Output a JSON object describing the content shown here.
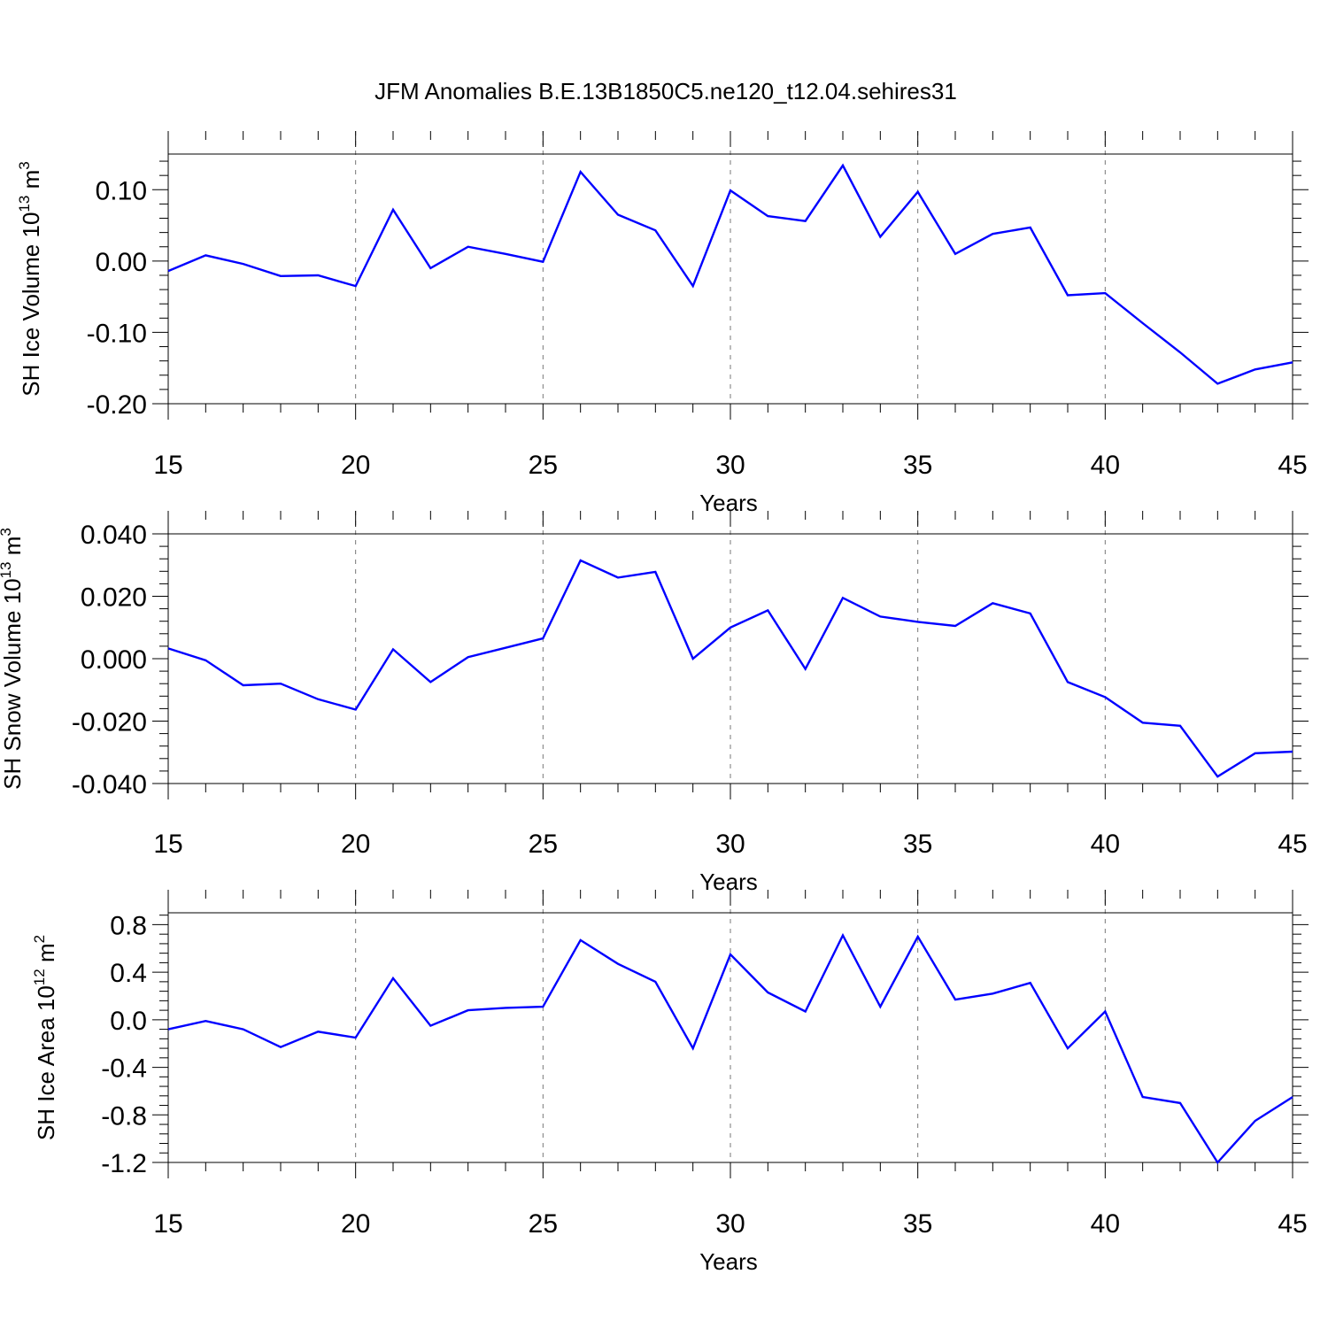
{
  "title": "JFM Anomalies B.E.13B1850C5.ne120_t12.04.sehires31",
  "colors": {
    "line": "#0000ff",
    "axis": "#000000",
    "grid": "#777777"
  },
  "chart_data": [
    {
      "type": "line",
      "ylabel": {
        "text": "SH Ice Volume 10",
        "exp": "13",
        "unit": " m",
        "unit_exp": "3"
      },
      "xlabel": "Years",
      "xlim": [
        15,
        45
      ],
      "ylim": [
        -0.2,
        0.15
      ],
      "x_ticks": [
        "15",
        "20",
        "25",
        "30",
        "35",
        "40",
        "45"
      ],
      "y_ticks": [
        {
          "v": -0.2,
          "label": "-0.20"
        },
        {
          "v": -0.1,
          "label": "-0.10"
        },
        {
          "v": 0.0,
          "label": "0.00"
        },
        {
          "v": 0.1,
          "label": "0.10"
        }
      ],
      "grid_x": [
        20,
        25,
        30,
        35,
        40
      ],
      "x": [
        15,
        16,
        17,
        18,
        19,
        20,
        21,
        22,
        23,
        24,
        25,
        26,
        27,
        28,
        29,
        30,
        31,
        32,
        33,
        34,
        35,
        36,
        37,
        38,
        39,
        40,
        41,
        42,
        43,
        44,
        45
      ],
      "series": [
        {
          "values": [
            -0.014,
            0.008,
            -0.004,
            -0.021,
            -0.02,
            -0.035,
            0.072,
            -0.01,
            0.02,
            0.01,
            -0.001,
            0.125,
            0.065,
            0.043,
            -0.035,
            0.099,
            0.063,
            0.056,
            0.134,
            0.034,
            0.097,
            0.01,
            0.038,
            0.047,
            -0.048,
            -0.045,
            -0.087,
            -0.128,
            -0.172,
            -0.152,
            -0.142
          ]
        }
      ]
    },
    {
      "type": "line",
      "ylabel": {
        "text": "SH Snow Volume 10",
        "exp": "13",
        "unit": " m",
        "unit_exp": "3"
      },
      "xlabel": "Years",
      "xlim": [
        15,
        45
      ],
      "ylim": [
        -0.04,
        0.04
      ],
      "x_ticks": [
        "15",
        "20",
        "25",
        "30",
        "35",
        "40",
        "45"
      ],
      "y_ticks": [
        {
          "v": -0.04,
          "label": "-0.040"
        },
        {
          "v": -0.02,
          "label": "-0.020"
        },
        {
          "v": 0.0,
          "label": "0.000"
        },
        {
          "v": 0.02,
          "label": "0.020"
        },
        {
          "v": 0.04,
          "label": "0.040"
        }
      ],
      "grid_x": [
        20,
        25,
        30,
        35,
        40
      ],
      "x": [
        15,
        16,
        17,
        18,
        19,
        20,
        21,
        22,
        23,
        24,
        25,
        26,
        27,
        28,
        29,
        30,
        31,
        32,
        33,
        34,
        35,
        36,
        37,
        38,
        39,
        40,
        41,
        42,
        43,
        44,
        45
      ],
      "series": [
        {
          "values": [
            0.0033,
            -0.0005,
            -0.0085,
            -0.008,
            -0.013,
            -0.0163,
            0.003,
            -0.0075,
            0.0005,
            0.0035,
            0.0065,
            0.0315,
            0.026,
            0.0278,
            0.0,
            0.01,
            0.0155,
            -0.0033,
            0.0195,
            0.0135,
            0.0118,
            0.0105,
            0.0178,
            0.0145,
            -0.0075,
            -0.0123,
            -0.0205,
            -0.0215,
            -0.0378,
            -0.0303,
            -0.0298
          ]
        }
      ]
    },
    {
      "type": "line",
      "ylabel": {
        "text": "SH Ice Area 10",
        "exp": "12",
        "unit": " m",
        "unit_exp": "2"
      },
      "xlabel": "Years",
      "xlim": [
        15,
        45
      ],
      "ylim": [
        -1.2,
        0.9
      ],
      "x_ticks": [
        "15",
        "20",
        "25",
        "30",
        "35",
        "40",
        "45"
      ],
      "y_ticks": [
        {
          "v": -1.2,
          "label": "-1.2"
        },
        {
          "v": -0.8,
          "label": "-0.8"
        },
        {
          "v": -0.4,
          "label": "-0.4"
        },
        {
          "v": 0.0,
          "label": "0.0"
        },
        {
          "v": 0.4,
          "label": "0.4"
        },
        {
          "v": 0.8,
          "label": "0.8"
        }
      ],
      "grid_x": [
        20,
        25,
        30,
        35,
        40
      ],
      "x": [
        15,
        16,
        17,
        18,
        19,
        20,
        21,
        22,
        23,
        24,
        25,
        26,
        27,
        28,
        29,
        30,
        31,
        32,
        33,
        34,
        35,
        36,
        37,
        38,
        39,
        40,
        41,
        42,
        43,
        44,
        45
      ],
      "series": [
        {
          "values": [
            -0.08,
            -0.01,
            -0.08,
            -0.23,
            -0.1,
            -0.15,
            0.35,
            -0.05,
            0.08,
            0.1,
            0.11,
            0.67,
            0.47,
            0.32,
            -0.24,
            0.55,
            0.23,
            0.07,
            0.71,
            0.11,
            0.7,
            0.17,
            0.22,
            0.31,
            -0.24,
            0.07,
            -0.65,
            -0.7,
            -1.2,
            -0.85,
            -0.65
          ]
        }
      ]
    }
  ]
}
